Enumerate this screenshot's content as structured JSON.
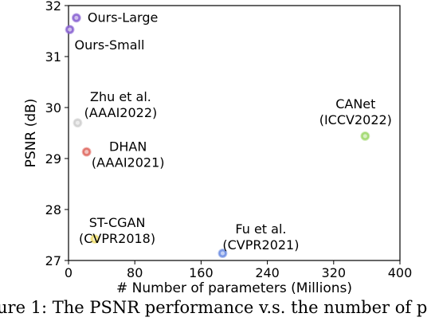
{
  "chart_data": {
    "type": "scatter",
    "xlabel": "# Number of parameters (Millions)",
    "ylabel": "PSNR (dB)",
    "xlim": [
      0,
      400
    ],
    "ylim": [
      27,
      32
    ],
    "xticks": [
      0,
      80,
      160,
      240,
      320,
      400
    ],
    "yticks": [
      27,
      28,
      29,
      30,
      31,
      32
    ],
    "grid": false,
    "points": [
      {
        "name": "ours-large",
        "label": [
          "Ours-Large"
        ],
        "x": 9.5,
        "y": 31.76,
        "color": "#8a63d2"
      },
      {
        "name": "ours-small",
        "label": [
          "Ours-Small"
        ],
        "x": 1.5,
        "y": 31.53,
        "color": "#8a63d2"
      },
      {
        "name": "zhu",
        "label": [
          "Zhu et al.",
          "(AAAI2022)"
        ],
        "x": 11,
        "y": 29.7,
        "color": "#cfcfcf"
      },
      {
        "name": "dhan",
        "label": [
          "DHAN",
          "(AAAI2021)"
        ],
        "x": 21.8,
        "y": 29.13,
        "color": "#e06b63"
      },
      {
        "name": "canet",
        "label": [
          "CANet",
          "(ICCV2022)"
        ],
        "x": 358,
        "y": 29.44,
        "color": "#9fd86b"
      },
      {
        "name": "st-cgan",
        "label": [
          "ST-CGAN",
          "(CVPR2018)"
        ],
        "x": 31.8,
        "y": 27.42,
        "color": "#f0df6e"
      },
      {
        "name": "fu",
        "label": [
          "Fu et al.",
          "(CVPR2021)"
        ],
        "x": 186,
        "y": 27.14,
        "color": "#6f8fe3"
      }
    ]
  },
  "caption": "ure 1: The PSNR performance  v.s.  the number of p"
}
